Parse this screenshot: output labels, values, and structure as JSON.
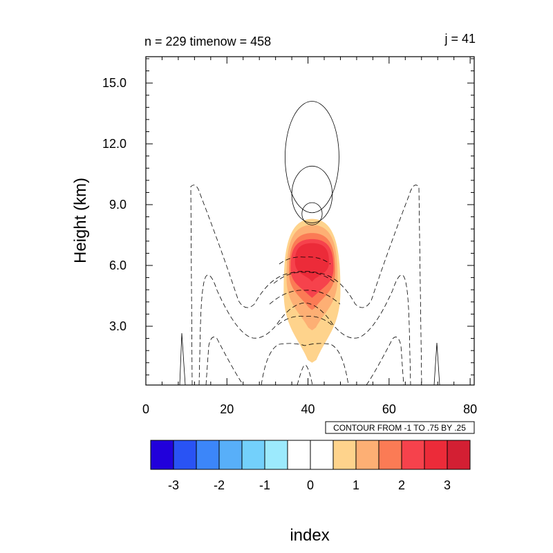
{
  "chart_data": {
    "type": "contour",
    "title_left": "n = 229 timenow = 458",
    "title_right": "j = 41",
    "xlabel": "",
    "ylabel": "Height (km)",
    "xlim": [
      0,
      81
    ],
    "ylim": [
      0.1,
      16.3
    ],
    "x_ticks": [
      "0",
      "20",
      "40",
      "60",
      "80"
    ],
    "y_ticks": [
      "3.0",
      "6.0",
      "9.0",
      "12.0",
      "15.0"
    ],
    "contour_info": "CONTOUR FROM -1 TO .75 BY .25",
    "filled_field": {
      "center_x": 41,
      "levels": [
        {
          "range": "0.5-1",
          "color": "#fed38c",
          "x": [
            34.5,
            48.5
          ],
          "y": [
            1.2,
            8.3
          ]
        },
        {
          "range": "1-1.5",
          "color": "#fdaf74",
          "x": [
            35.2,
            47.8
          ],
          "y": [
            2.8,
            8.0
          ]
        },
        {
          "range": "1.5-2",
          "color": "#fb7b55",
          "x": [
            35.8,
            47.2
          ],
          "y": [
            3.8,
            7.6
          ]
        },
        {
          "range": "2-2.5",
          "color": "#f6424c",
          "x": [
            36.2,
            46.8
          ],
          "y": [
            4.4,
            7.3
          ]
        },
        {
          "range": "2.5-3",
          "color": "#ec2b39",
          "x": [
            37.2,
            45.6
          ],
          "y": [
            5.2,
            7.1
          ]
        }
      ]
    },
    "line_contours": {
      "solid_positive": [
        {
          "center_x": 41,
          "x": [
            34.3,
            47.6
          ],
          "y": [
            8.6,
            14.1
          ]
        },
        {
          "center_x": 41,
          "x": [
            37.0,
            47.0
          ],
          "y": [
            8.1,
            10.9
          ]
        },
        {
          "center_x": 41,
          "x": [
            38.5,
            43.5
          ],
          "y": [
            8.0,
            9.1
          ]
        }
      ],
      "dashed_negative_count": 6
    },
    "colorbar": {
      "labels": [
        "-3",
        "-2",
        "-1",
        "0",
        "1",
        "2",
        "3"
      ],
      "colors": [
        "#2100db",
        "#2953f4",
        "#3c86f9",
        "#58aff9",
        "#73d0fb",
        "#9ceafd",
        "#ffffff",
        "#ffffff",
        "#fed38c",
        "#fdaf74",
        "#fb7b55",
        "#f6424c",
        "#ec2b39",
        "#d31f33"
      ]
    },
    "index_label": "index",
    "grid": false
  }
}
